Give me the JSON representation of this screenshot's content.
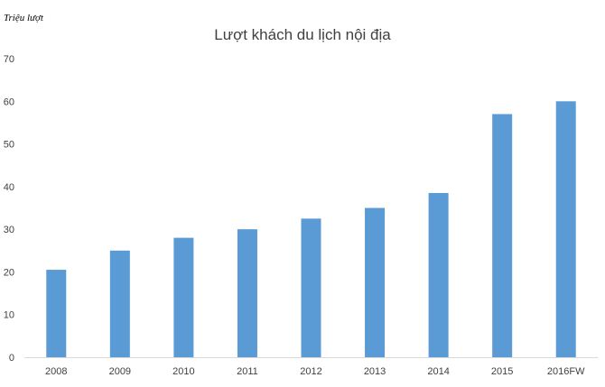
{
  "chart_data": {
    "type": "bar",
    "title": "Lượt khách du lịch nội địa",
    "ylabel": "Triệu lượt",
    "xlabel": "",
    "categories": [
      "2008",
      "2009",
      "2010",
      "2011",
      "2012",
      "2013",
      "2014",
      "2015",
      "2016FW"
    ],
    "values": [
      20.5,
      25,
      28,
      30,
      32.5,
      35,
      38.5,
      57,
      60
    ],
    "ylim": [
      0,
      70
    ],
    "yticks": [
      "0",
      "10",
      "20",
      "30",
      "40",
      "50",
      "60",
      "70"
    ],
    "grid": false,
    "legend": "none",
    "bar_color": "#5b9bd5",
    "axis_color": "#d9d9d9"
  }
}
